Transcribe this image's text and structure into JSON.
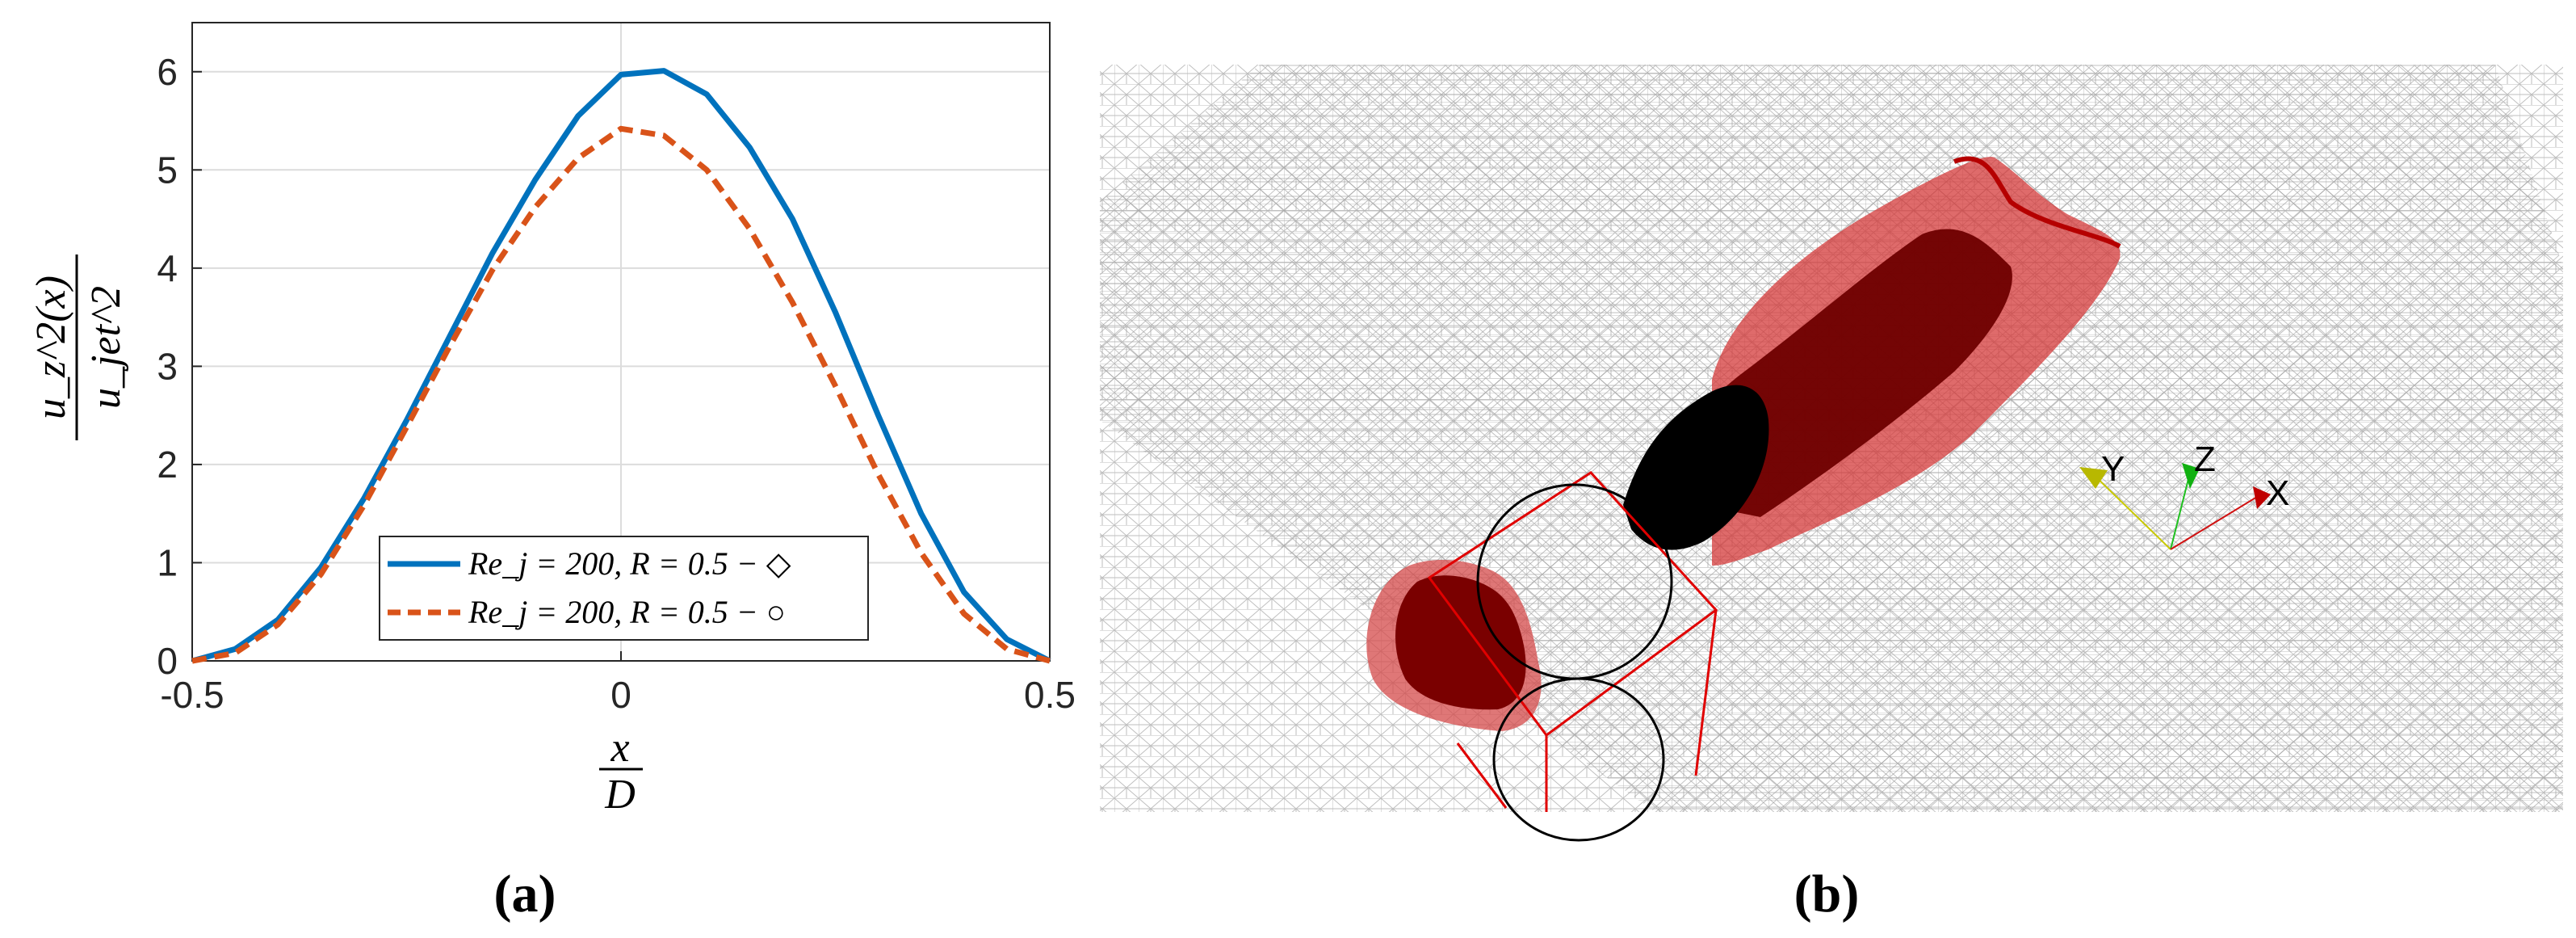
{
  "figure": {
    "panel_a_label": "(a)",
    "panel_b_label": "(b)"
  },
  "chart_data": {
    "type": "line",
    "x": [
      -0.5,
      -0.45,
      -0.4,
      -0.35,
      -0.3,
      -0.25,
      -0.2,
      -0.15,
      -0.1,
      -0.05,
      0,
      0.05,
      0.1,
      0.15,
      0.2,
      0.25,
      0.3,
      0.35,
      0.4,
      0.45,
      0.5
    ],
    "series": [
      {
        "name": "Re_j = 200, R = 0.5 − ◇",
        "color": "#0072BD",
        "style": "solid",
        "values": [
          0.0,
          0.12,
          0.42,
          0.95,
          1.65,
          2.45,
          3.3,
          4.15,
          4.9,
          5.55,
          5.97,
          6.01,
          5.77,
          5.23,
          4.5,
          3.55,
          2.5,
          1.5,
          0.7,
          0.22,
          0.0
        ]
      },
      {
        "name": "Re_j = 200, R = 0.5 − ○",
        "color": "#D95319",
        "style": "dashed",
        "values": [
          0.0,
          0.08,
          0.37,
          0.88,
          1.58,
          2.38,
          3.2,
          3.98,
          4.62,
          5.12,
          5.42,
          5.35,
          5.0,
          4.4,
          3.65,
          2.8,
          1.9,
          1.1,
          0.48,
          0.12,
          0.0
        ]
      }
    ],
    "xticks": [
      "-0.5",
      "0",
      "0.5"
    ],
    "yticks": [
      "0",
      "1",
      "2",
      "3",
      "4",
      "5",
      "6"
    ],
    "xlim": [
      -0.5,
      0.5
    ],
    "ylim": [
      0,
      6.5
    ],
    "xlabel_num": "x",
    "xlabel_den": "D",
    "ylabel_num": "u_z^2(x)",
    "ylabel_den": "u_jet^2",
    "grid": true,
    "legend_position": "bottom-center"
  },
  "render3d": {
    "axis_labels": [
      "Y",
      "Z",
      "X"
    ],
    "colors": {
      "Y": "#c8c800",
      "Z": "#20c020",
      "X": "#d01010"
    }
  }
}
